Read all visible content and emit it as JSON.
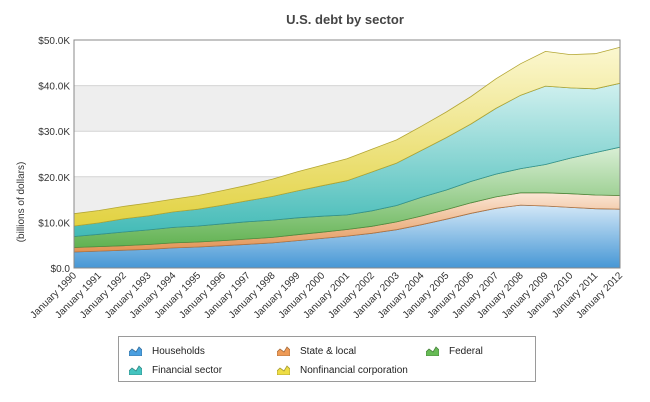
{
  "chart_data": {
    "type": "area",
    "stacked": true,
    "title": "U.S. debt by sector",
    "ylabel": "(billions of dollars)",
    "xlabel": "",
    "ylim": [
      0,
      50000
    ],
    "y_ticks": [
      "$0.0",
      "$10.0K",
      "$20.0K",
      "$30.0K",
      "$40.0K",
      "$50.0K"
    ],
    "x_tick_labels": [
      "January 1990",
      "January 1991",
      "January 1992",
      "January 1993",
      "January 1994",
      "January 1995",
      "January 1996",
      "January 1997",
      "January 1998",
      "January 1999",
      "January 2000",
      "January 2001",
      "January 2002",
      "January 2003",
      "January 2004",
      "January 2005",
      "January 2006",
      "January 2007",
      "January 2008",
      "January 2009",
      "January 2010",
      "January 2011",
      "January 2012"
    ],
    "grid": "horizontal bands",
    "legend_position": "bottom",
    "x": [
      "1990",
      "1991",
      "1992",
      "1993",
      "1994",
      "1995",
      "1996",
      "1997",
      "1998",
      "1999",
      "2000",
      "2001",
      "2002",
      "2003",
      "2004",
      "2005",
      "2006",
      "2007",
      "2008",
      "2009",
      "2010",
      "2011",
      "2012"
    ],
    "series": [
      {
        "name": "Households",
        "color": "#4a9fe0",
        "values": [
          3500,
          3700,
          3900,
          4100,
          4400,
          4600,
          4900,
          5200,
          5500,
          6000,
          6500,
          7000,
          7600,
          8400,
          9500,
          10700,
          12000,
          13100,
          13800,
          13600,
          13300,
          13000,
          12900
        ]
      },
      {
        "name": "State & local",
        "color": "#ee9a55",
        "values": [
          1000,
          1000,
          1000,
          1050,
          1100,
          1100,
          1100,
          1150,
          1200,
          1300,
          1350,
          1450,
          1550,
          1700,
          1900,
          2100,
          2300,
          2500,
          2700,
          2900,
          3000,
          3000,
          3000
        ]
      },
      {
        "name": "Federal",
        "color": "#66bb55",
        "values": [
          2400,
          2700,
          3000,
          3200,
          3400,
          3500,
          3700,
          3800,
          3800,
          3700,
          3500,
          3200,
          3400,
          3600,
          4100,
          4300,
          4700,
          5000,
          5300,
          6200,
          7800,
          9300,
          10600
        ]
      },
      {
        "name": "Financial sector",
        "color": "#44c4c0",
        "values": [
          2300,
          2500,
          2900,
          3100,
          3400,
          3700,
          4100,
          4600,
          5200,
          5900,
          6700,
          7500,
          8500,
          9300,
          10300,
          11500,
          12600,
          14400,
          16100,
          17200,
          15400,
          14000,
          14000
        ]
      },
      {
        "name": "Nonfinancial corporation",
        "color": "#eedd44",
        "values": [
          2700,
          2700,
          2700,
          2800,
          2800,
          3000,
          3200,
          3400,
          3800,
          4200,
          4500,
          4800,
          5000,
          5100,
          5300,
          5600,
          6000,
          6500,
          6900,
          7600,
          7300,
          7700,
          7900
        ]
      }
    ]
  }
}
